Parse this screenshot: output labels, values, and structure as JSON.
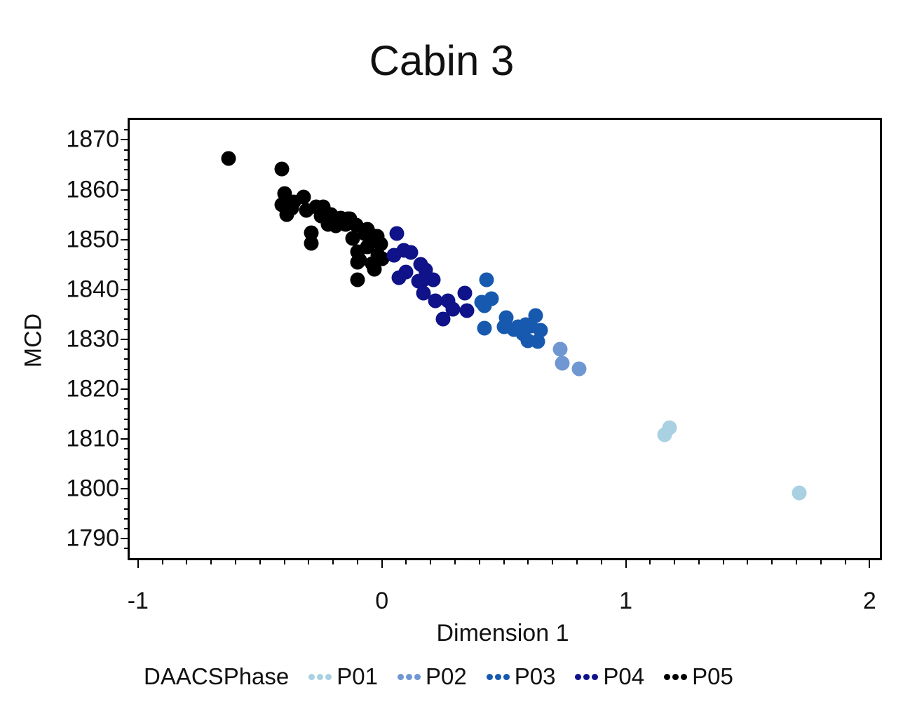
{
  "chart_data": {
    "type": "scatter",
    "title": "Cabin 3",
    "xlabel": "Dimension 1",
    "ylabel": "MCD",
    "legend_title": "DAACSPhase",
    "legend_position": "bottom",
    "grid": false,
    "xlim": [
      -1.034,
      2.042
    ],
    "ylim": [
      1786.1,
      1874.0
    ],
    "x_major_ticks": [
      -1,
      0,
      1,
      2
    ],
    "x_minor_step": 0.1,
    "y_major_ticks": [
      1790,
      1800,
      1810,
      1820,
      1830,
      1840,
      1850,
      1860,
      1870
    ],
    "y_minor_step": 2,
    "series": [
      {
        "name": "P01",
        "color": "#a9d1e2",
        "points": [
          [
            1.16,
            1810.8
          ],
          [
            1.18,
            1812.3
          ],
          [
            1.71,
            1799.2
          ]
        ]
      },
      {
        "name": "P02",
        "color": "#6f97d2",
        "points": [
          [
            0.73,
            1828.0
          ],
          [
            0.74,
            1825.2
          ],
          [
            0.81,
            1824.1
          ]
        ]
      },
      {
        "name": "P03",
        "color": "#1659ae",
        "points": [
          [
            0.43,
            1841.9
          ],
          [
            0.45,
            1838.1
          ],
          [
            0.42,
            1836.7
          ],
          [
            0.41,
            1837.4
          ],
          [
            0.42,
            1832.3
          ],
          [
            0.51,
            1834.4
          ],
          [
            0.5,
            1832.5
          ],
          [
            0.54,
            1832.0
          ],
          [
            0.56,
            1832.5
          ],
          [
            0.63,
            1834.8
          ],
          [
            0.61,
            1832.7
          ],
          [
            0.58,
            1831.1
          ],
          [
            0.65,
            1831.8
          ],
          [
            0.64,
            1829.5
          ],
          [
            0.6,
            1829.7
          ],
          [
            0.59,
            1833.0
          ]
        ]
      },
      {
        "name": "P04",
        "color": "#0f1289",
        "points": [
          [
            0.06,
            1851.2
          ],
          [
            0.05,
            1846.8
          ],
          [
            0.09,
            1847.9
          ],
          [
            0.12,
            1847.4
          ],
          [
            0.07,
            1842.3
          ],
          [
            0.1,
            1843.5
          ],
          [
            0.16,
            1845.0
          ],
          [
            0.18,
            1843.9
          ],
          [
            0.17,
            1842.0
          ],
          [
            0.21,
            1841.9
          ],
          [
            0.15,
            1841.6
          ],
          [
            0.17,
            1839.3
          ],
          [
            0.22,
            1837.7
          ],
          [
            0.27,
            1837.7
          ],
          [
            0.29,
            1836.0
          ],
          [
            0.25,
            1834.1
          ],
          [
            0.34,
            1839.3
          ],
          [
            0.35,
            1835.8
          ]
        ]
      },
      {
        "name": "P05",
        "color": "#000000",
        "points": [
          [
            -0.63,
            1866.2
          ],
          [
            -0.41,
            1864.1
          ],
          [
            -0.4,
            1859.3
          ],
          [
            -0.41,
            1857.0
          ],
          [
            -0.39,
            1855.0
          ],
          [
            -0.37,
            1856.3
          ],
          [
            -0.36,
            1857.6
          ],
          [
            -0.32,
            1858.5
          ],
          [
            -0.31,
            1855.9
          ],
          [
            -0.27,
            1856.6
          ],
          [
            -0.25,
            1854.8
          ],
          [
            -0.24,
            1856.6
          ],
          [
            -0.29,
            1851.4
          ],
          [
            -0.29,
            1849.3
          ],
          [
            -0.22,
            1853.1
          ],
          [
            -0.21,
            1855.0
          ],
          [
            -0.19,
            1852.7
          ],
          [
            -0.17,
            1854.3
          ],
          [
            -0.15,
            1853.0
          ],
          [
            -0.14,
            1854.1
          ],
          [
            -0.13,
            1854.2
          ],
          [
            -0.105,
            1852.9
          ],
          [
            -0.12,
            1850.3
          ],
          [
            -0.06,
            1852.0
          ],
          [
            -0.07,
            1851.2
          ],
          [
            -0.04,
            1850.8
          ],
          [
            -0.02,
            1850.6
          ],
          [
            -0.005,
            1849.1
          ],
          [
            -0.06,
            1848.5
          ],
          [
            -0.1,
            1847.5
          ],
          [
            -0.09,
            1845.9
          ],
          [
            -0.1,
            1845.4
          ],
          [
            -0.04,
            1845.2
          ],
          [
            -0.015,
            1846.8
          ],
          [
            -0.03,
            1844.0
          ],
          [
            0.0,
            1846.1
          ],
          [
            -0.1,
            1841.9
          ]
        ]
      }
    ]
  }
}
